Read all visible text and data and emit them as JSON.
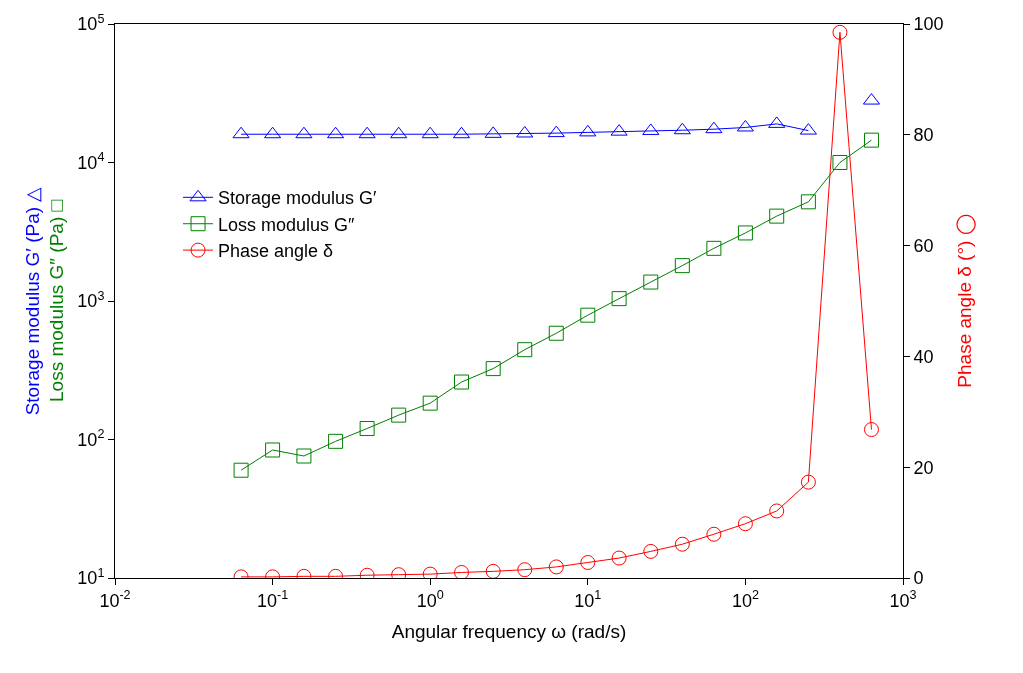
{
  "chart_data": {
    "type": "line",
    "xlabel": "Angular frequency ω (rad/s)",
    "ylabel": "Storage modulus G′ (Pa) △\nLoss modulus G″ (Pa) □",
    "y2label": "Phase angle δ (°) ◯",
    "x": [
      0.0631,
      0.1,
      0.158,
      0.251,
      0.398,
      0.631,
      1,
      1.58,
      2.51,
      3.98,
      6.31,
      10,
      15.8,
      25.1,
      39.8,
      63.1,
      100,
      158,
      251,
      398,
      631
    ],
    "series": [
      {
        "name": "Storage modulus G′",
        "color": "#0000ff",
        "marker": "triangle",
        "values": [
          16000,
          16000,
          16000,
          16000,
          16000,
          16000,
          16000,
          16000,
          16100,
          16200,
          16300,
          16500,
          16700,
          16900,
          17100,
          17400,
          17900,
          19000,
          17000,
          null,
          28000
        ]
      },
      {
        "name": "Loss modulus G″",
        "color": "#008000",
        "marker": "square",
        "values": [
          60,
          84,
          76,
          97,
          120,
          150,
          183,
          260,
          325,
          445,
          585,
          790,
          1040,
          1370,
          1800,
          2400,
          3100,
          4100,
          5200,
          10000,
          14500
        ]
      },
      {
        "name": "Phase angle δ",
        "color": "#ff0000",
        "marker": "circle",
        "axis": "y2",
        "values": [
          0.2,
          0.2,
          0.3,
          0.3,
          0.5,
          0.6,
          0.7,
          1.0,
          1.2,
          1.5,
          2.0,
          2.8,
          3.6,
          4.8,
          6.1,
          7.9,
          9.8,
          12.1,
          17.3,
          98.5,
          26.8
        ]
      }
    ],
    "log": "xy",
    "xlim": [
      0.01,
      1000
    ],
    "xticks": [
      {
        "value": 0.01,
        "label": "10$^{-2}$"
      },
      {
        "value": 0.1,
        "label": "10$^{-1}$"
      },
      {
        "value": 1,
        "label": "10$^{0}$"
      },
      {
        "value": 10,
        "label": "10$^{1}$"
      },
      {
        "value": 100,
        "label": "10$^{2}$"
      },
      {
        "value": 1000,
        "label": "10$^{3}$"
      }
    ],
    "ylim": [
      10,
      100000
    ],
    "yticks": [
      {
        "value": 10,
        "label": "10$^{1}$"
      },
      {
        "value": 100,
        "label": "10$^{2}$"
      },
      {
        "value": 1000,
        "label": "10$^{3}$"
      },
      {
        "value": 10000,
        "label": "10$^{4}$"
      },
      {
        "value": 100000,
        "label": "10$^{5}$"
      }
    ],
    "y2lim": [
      0,
      100
    ],
    "y2ticks": [
      0,
      20,
      40,
      60,
      80,
      100
    ],
    "legend": "top left"
  }
}
